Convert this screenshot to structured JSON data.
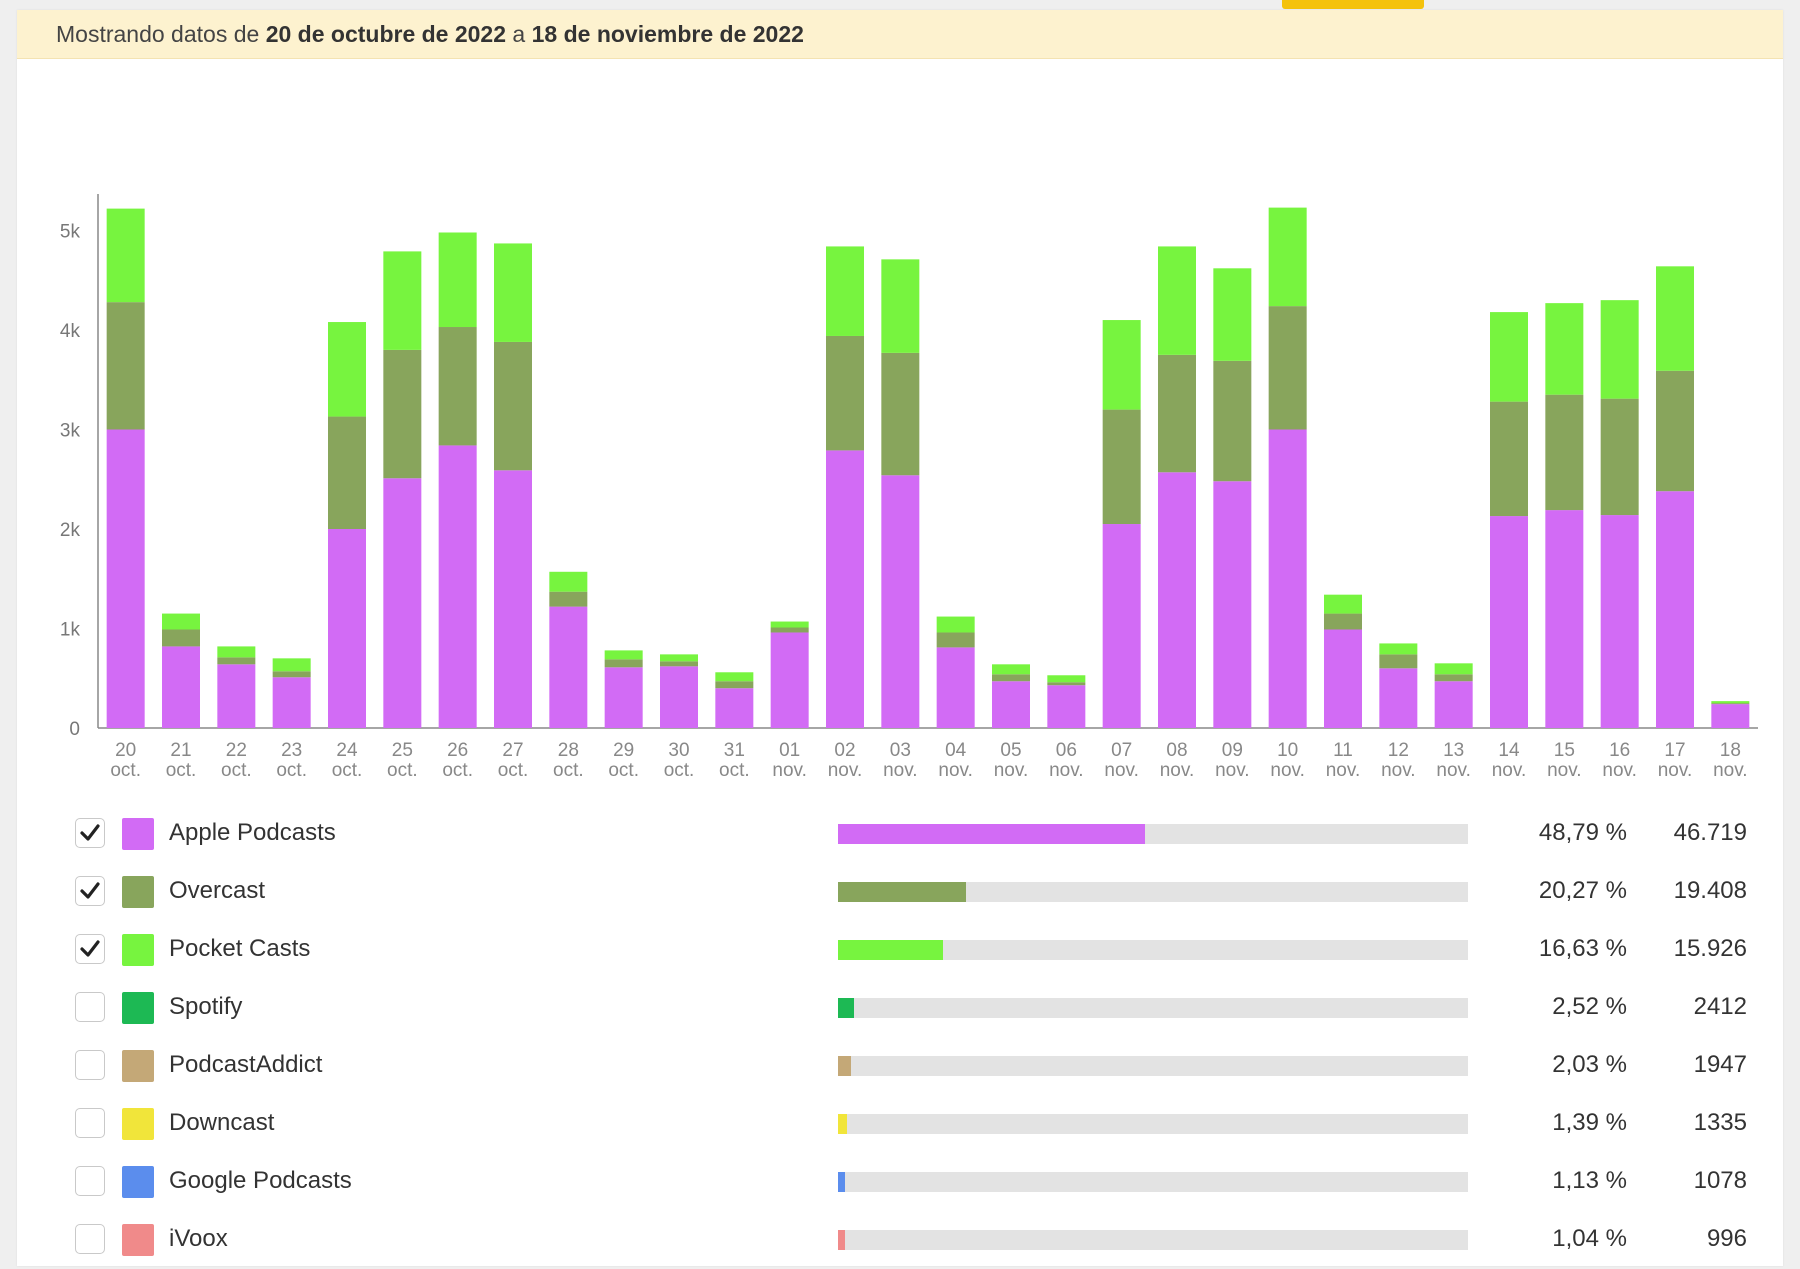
{
  "banner": {
    "prefix": "Mostrando datos de ",
    "start": "20 de octubre de 2022",
    "middle": " a ",
    "end": "18 de noviembre de 2022"
  },
  "chart_data": {
    "type": "bar",
    "stacked": true,
    "grid": false,
    "ylim": [
      0,
      6000
    ],
    "yticks": [
      {
        "value": 0,
        "label": "0"
      },
      {
        "value": 1000,
        "label": "1k"
      },
      {
        "value": 2000,
        "label": "2k"
      },
      {
        "value": 3000,
        "label": "3k"
      },
      {
        "value": 4000,
        "label": "4k"
      },
      {
        "value": 5000,
        "label": "5k"
      }
    ],
    "categories": [
      [
        "20",
        "oct."
      ],
      [
        "21",
        "oct."
      ],
      [
        "22",
        "oct."
      ],
      [
        "23",
        "oct."
      ],
      [
        "24",
        "oct."
      ],
      [
        "25",
        "oct."
      ],
      [
        "26",
        "oct."
      ],
      [
        "27",
        "oct."
      ],
      [
        "28",
        "oct."
      ],
      [
        "29",
        "oct."
      ],
      [
        "30",
        "oct."
      ],
      [
        "31",
        "oct."
      ],
      [
        "01",
        "nov."
      ],
      [
        "02",
        "nov."
      ],
      [
        "03",
        "nov."
      ],
      [
        "04",
        "nov."
      ],
      [
        "05",
        "nov."
      ],
      [
        "06",
        "nov."
      ],
      [
        "07",
        "nov."
      ],
      [
        "08",
        "nov."
      ],
      [
        "09",
        "nov."
      ],
      [
        "10",
        "nov."
      ],
      [
        "11",
        "nov."
      ],
      [
        "12",
        "nov."
      ],
      [
        "13",
        "nov."
      ],
      [
        "14",
        "nov."
      ],
      [
        "15",
        "nov."
      ],
      [
        "16",
        "nov."
      ],
      [
        "17",
        "nov."
      ],
      [
        "18",
        "nov."
      ]
    ],
    "series": [
      {
        "name": "Apple Podcasts",
        "color": "#d26bf5",
        "values": [
          3000,
          820,
          640,
          510,
          2000,
          2510,
          2840,
          2590,
          1220,
          610,
          620,
          400,
          960,
          2790,
          2540,
          810,
          470,
          430,
          2050,
          2570,
          2480,
          3000,
          990,
          600,
          470,
          2130,
          2190,
          2140,
          2380,
          240
        ]
      },
      {
        "name": "Overcast",
        "color": "#88a55c",
        "values": [
          1280,
          170,
          70,
          60,
          1130,
          1290,
          1190,
          1290,
          150,
          80,
          50,
          70,
          50,
          1150,
          1230,
          150,
          70,
          30,
          1150,
          1180,
          1210,
          1240,
          160,
          140,
          70,
          1150,
          1160,
          1170,
          1210,
          10
        ]
      },
      {
        "name": "Pocket Casts",
        "color": "#77f43f",
        "values": [
          940,
          160,
          110,
          130,
          950,
          990,
          950,
          990,
          200,
          90,
          70,
          90,
          60,
          900,
          940,
          160,
          100,
          70,
          900,
          1090,
          930,
          990,
          190,
          110,
          110,
          900,
          920,
          990,
          1050,
          20
        ]
      }
    ]
  },
  "legend": [
    {
      "label": "Apple Podcasts",
      "color": "#d26bf5",
      "checked": true,
      "fraction": 0.4879,
      "pct": "48,79 %",
      "count": "46.719"
    },
    {
      "label": "Overcast",
      "color": "#88a55c",
      "checked": true,
      "fraction": 0.2027,
      "pct": "20,27 %",
      "count": "19.408"
    },
    {
      "label": "Pocket Casts",
      "color": "#77f43f",
      "checked": true,
      "fraction": 0.1663,
      "pct": "16,63 %",
      "count": "15.926"
    },
    {
      "label": "Spotify",
      "color": "#1db954",
      "checked": false,
      "fraction": 0.0252,
      "pct": "2,52 %",
      "count": "2412"
    },
    {
      "label": "PodcastAddict",
      "color": "#c4a877",
      "checked": false,
      "fraction": 0.0203,
      "pct": "2,03 %",
      "count": "1947"
    },
    {
      "label": "Downcast",
      "color": "#f1e53a",
      "checked": false,
      "fraction": 0.0139,
      "pct": "1,39 %",
      "count": "1335"
    },
    {
      "label": "Google Podcasts",
      "color": "#5b8ded",
      "checked": false,
      "fraction": 0.0113,
      "pct": "1,13 %",
      "count": "1078"
    },
    {
      "label": "iVoox",
      "color": "#f08a8a",
      "checked": false,
      "fraction": 0.0104,
      "pct": "1,04 %",
      "count": "996"
    }
  ]
}
